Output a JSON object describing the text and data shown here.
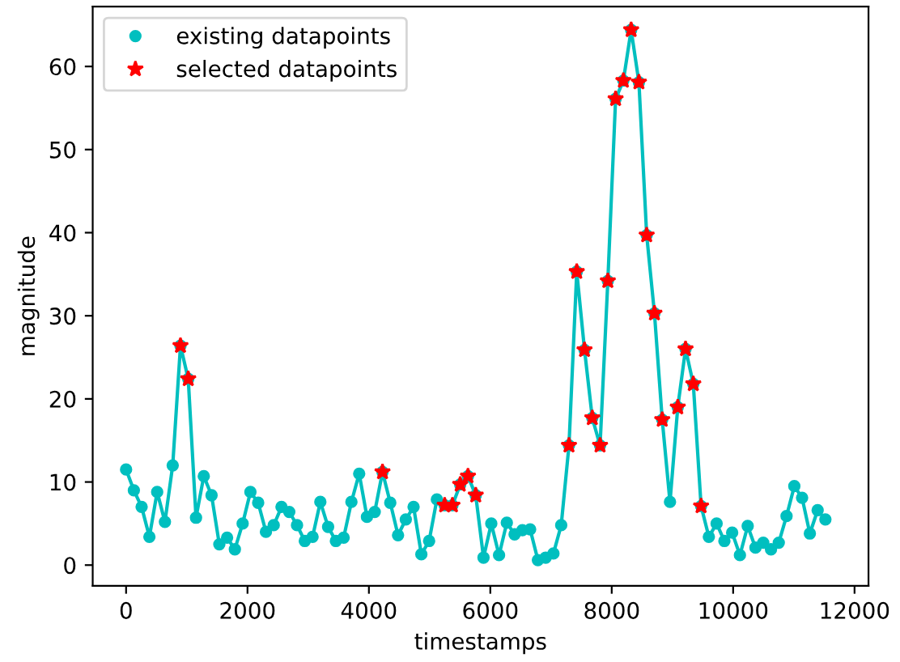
{
  "chart_data": {
    "type": "line",
    "xlabel": "timestamps",
    "ylabel": "magnitude",
    "x": [
      0,
      128,
      256,
      384,
      512,
      640,
      768,
      896,
      1024,
      1152,
      1280,
      1408,
      1536,
      1664,
      1792,
      1920,
      2048,
      2176,
      2304,
      2432,
      2560,
      2688,
      2816,
      2944,
      3072,
      3200,
      3328,
      3456,
      3584,
      3712,
      3840,
      3968,
      4096,
      4224,
      4352,
      4480,
      4608,
      4736,
      4864,
      4992,
      5120,
      5248,
      5376,
      5504,
      5632,
      5760,
      5888,
      6016,
      6144,
      6272,
      6400,
      6528,
      6656,
      6784,
      6912,
      7040,
      7168,
      7296,
      7424,
      7552,
      7680,
      7808,
      7936,
      8064,
      8192,
      8320,
      8448,
      8576,
      8704,
      8832,
      8960,
      9088,
      9216,
      9344,
      9472,
      9600,
      9728,
      9856,
      9984,
      10112,
      10240,
      10368,
      10496,
      10624,
      10752,
      10880,
      11008,
      11136,
      11264,
      11392,
      11520
    ],
    "series": [
      {
        "color": "#00bfbf",
        "marker": "none",
        "values": [
          11.5,
          9.0,
          7.0,
          3.4,
          8.8,
          5.2,
          12.0,
          26.4,
          22.4,
          5.7,
          10.7,
          8.4,
          2.5,
          3.3,
          1.9,
          5.0,
          8.8,
          7.5,
          4.0,
          4.8,
          7.0,
          6.4,
          4.8,
          2.9,
          3.4,
          7.6,
          4.6,
          2.9,
          3.3,
          7.6,
          11.0,
          5.8,
          6.4,
          11.2,
          7.5,
          3.6,
          5.5,
          7.0,
          1.3,
          2.9,
          7.9,
          7.2,
          7.2,
          9.7,
          10.7,
          8.4,
          0.9,
          5.0,
          1.2,
          5.1,
          3.7,
          4.2,
          4.3,
          0.6,
          0.9,
          1.4,
          4.8,
          14.4,
          35.3,
          25.9,
          17.7,
          14.4,
          34.2,
          56.1,
          58.3,
          64.4,
          58.1,
          39.7,
          30.3,
          17.5,
          7.6,
          19.0,
          26.0,
          21.8,
          7.1,
          3.4,
          5.0,
          2.9,
          3.9,
          1.2,
          4.7,
          2.1,
          2.7,
          1.9,
          2.7,
          5.9,
          9.5,
          8.1,
          3.8,
          6.6,
          5.5
        ]
      },
      {
        "type": "scatter",
        "name": "existing datapoints",
        "color": "#00bfbf",
        "marker": "circle",
        "values": [
          11.5,
          9.0,
          7.0,
          3.4,
          8.8,
          5.2,
          12.0,
          26.4,
          22.4,
          5.7,
          10.7,
          8.4,
          2.5,
          3.3,
          1.9,
          5.0,
          8.8,
          7.5,
          4.0,
          4.8,
          7.0,
          6.4,
          4.8,
          2.9,
          3.4,
          7.6,
          4.6,
          2.9,
          3.3,
          7.6,
          11.0,
          5.8,
          6.4,
          11.2,
          7.5,
          3.6,
          5.5,
          7.0,
          1.3,
          2.9,
          7.9,
          7.2,
          7.2,
          9.7,
          10.7,
          8.4,
          0.9,
          5.0,
          1.2,
          5.1,
          3.7,
          4.2,
          4.3,
          0.6,
          0.9,
          1.4,
          4.8,
          14.4,
          35.3,
          25.9,
          17.7,
          14.4,
          34.2,
          56.1,
          58.3,
          64.4,
          58.1,
          39.7,
          30.3,
          17.5,
          7.6,
          19.0,
          26.0,
          21.8,
          7.1,
          3.4,
          5.0,
          2.9,
          3.9,
          1.2,
          4.7,
          2.1,
          2.7,
          1.9,
          2.7,
          5.9,
          9.5,
          8.1,
          3.8,
          6.6,
          5.5
        ]
      },
      {
        "type": "scatter",
        "name": "selected datapoints",
        "color": "#ff0000",
        "marker": "star",
        "x": [
          896,
          1024,
          4224,
          5248,
          5376,
          5504,
          5632,
          5760,
          7296,
          7424,
          7552,
          7680,
          7808,
          7936,
          8064,
          8192,
          8320,
          8448,
          8576,
          8704,
          8832,
          9088,
          9216,
          9344,
          9472
        ],
        "values": [
          26.4,
          22.4,
          11.2,
          7.2,
          7.2,
          9.7,
          10.7,
          8.4,
          14.4,
          35.3,
          25.9,
          17.7,
          14.4,
          34.2,
          56.1,
          58.3,
          64.4,
          58.1,
          39.7,
          30.3,
          17.5,
          19.0,
          26.0,
          21.8,
          7.1
        ]
      }
    ],
    "xlim": [
      -550,
      12230
    ],
    "xticks": [
      0,
      2000,
      4000,
      6000,
      8000,
      10000,
      12000
    ],
    "ylim": [
      -2.5,
      67.2
    ],
    "yticks": [
      0,
      10,
      20,
      30,
      40,
      50,
      60
    ],
    "legend": "top left",
    "grid": false
  }
}
